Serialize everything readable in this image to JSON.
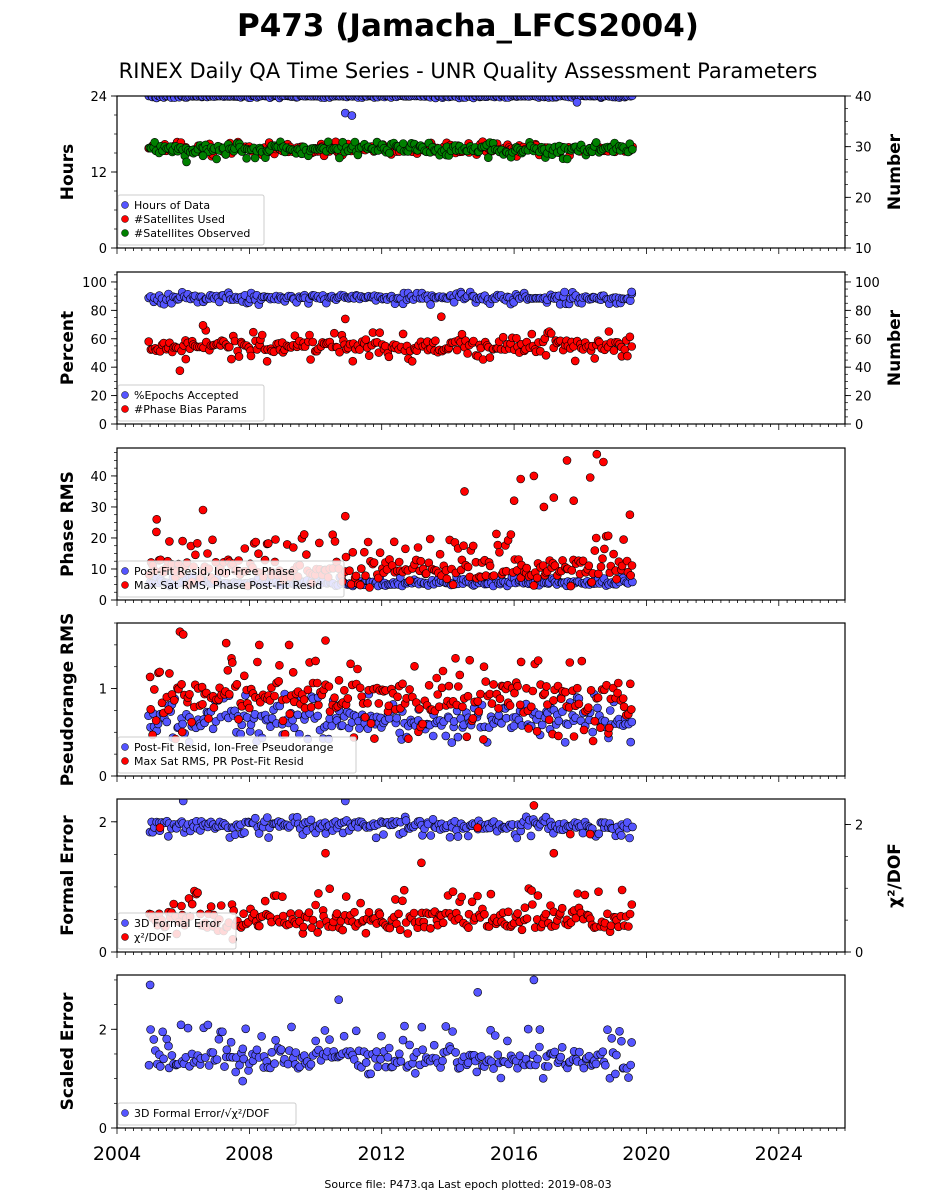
{
  "title": "P473 (Jamacha_LFCS2004)",
  "subtitle": "RINEX Daily QA Time Series - UNR Quality Assessment Parameters",
  "footer": "Source file: P473.qa Last epoch plotted: 2019-08-03",
  "colors": {
    "blue": "#5555ff",
    "red": "#ff0000",
    "green": "#008000",
    "edge": "#000000"
  },
  "x_axis": {
    "range": [
      2004.0,
      2026.0
    ],
    "tick_labels": [
      "2004",
      "2008",
      "2012",
      "2016",
      "2020",
      "2024"
    ],
    "data_start": 2004.95,
    "data_end": 2019.59
  },
  "chart_data": [
    {
      "type": "scatter",
      "ylabel": "Hours",
      "ylim": [
        0,
        24
      ],
      "yticks": [
        "0",
        "12",
        "24"
      ],
      "ylabel_right": "Number",
      "ylim_right": [
        10,
        40
      ],
      "yticks_right": [
        "10",
        "20",
        "30",
        "40"
      ],
      "legend": [
        "Hours of Data",
        "#Satellites Used",
        "#Satellites Observed"
      ],
      "legend_position": "lower-left",
      "series": [
        {
          "name": "Hours of Data",
          "color": "blue",
          "axis": "left",
          "typical": 24.0,
          "range": [
            23.7,
            24.0
          ],
          "outliers": [
            [
              2010.9,
              21.3
            ],
            [
              2011.1,
              20.9
            ],
            [
              2017.9,
              23.0
            ]
          ]
        },
        {
          "name": "#Satellites Used",
          "color": "red",
          "axis": "right",
          "typical": 29.5,
          "range": [
            28,
            31
          ],
          "outliers": [
            [
              2005.3,
              29.5
            ],
            [
              2008.6,
              30.8
            ],
            [
              2009.6,
              30.0
            ]
          ]
        },
        {
          "name": "#Satellites Observed",
          "color": "green",
          "axis": "right",
          "typical": 29.5,
          "range": [
            27.5,
            31
          ],
          "outliers": [
            [
              2006.1,
              27.0
            ],
            [
              2006.6,
              28.2
            ]
          ]
        }
      ]
    },
    {
      "type": "scatter",
      "ylabel": "Percent",
      "ylim": [
        0,
        107
      ],
      "yticks": [
        "0",
        "20",
        "40",
        "60",
        "80",
        "100"
      ],
      "ylabel_right": "Number",
      "ylim_right": [
        0,
        107
      ],
      "yticks_right": [
        "0",
        "20",
        "40",
        "60",
        "80",
        "100"
      ],
      "legend": [
        "%Epochs Accepted",
        "#Phase Bias Params"
      ],
      "legend_position": "lower-left",
      "series": [
        {
          "name": "%Epochs Accepted",
          "color": "blue",
          "axis": "left",
          "typical": 89,
          "range": [
            84,
            93
          ],
          "outliers": [
            [
              2019.55,
              93.0
            ]
          ]
        },
        {
          "name": "#Phase Bias Params",
          "color": "red",
          "axis": "right",
          "typical": 55,
          "range": [
            44,
            66
          ],
          "outliers": [
            [
              2005.9,
              37.5
            ],
            [
              2006.6,
              69.5
            ],
            [
              2010.9,
              74.0
            ],
            [
              2013.8,
              75.5
            ]
          ]
        }
      ]
    },
    {
      "type": "scatter",
      "ylabel": "Phase RMS",
      "ylim": [
        0,
        49
      ],
      "yticks": [
        "0",
        "10",
        "20",
        "30",
        "40"
      ],
      "legend": [
        "Post-Fit Resid, Ion-Free Phase",
        "Max Sat RMS, Phase Post-Fit Resid"
      ],
      "legend_position": "lower-left",
      "series": [
        {
          "name": "Post-Fit Resid, Ion-Free Phase",
          "color": "blue",
          "axis": "left",
          "typical": 5.5,
          "range": [
            4.5,
            7.5
          ],
          "outliers": []
        },
        {
          "name": "Max Sat RMS, Phase Post-Fit Resid",
          "color": "red",
          "axis": "left",
          "typical": 10,
          "range": [
            4,
            22
          ],
          "outliers": [
            [
              2005.2,
              26.0
            ],
            [
              2006.6,
              29.0
            ],
            [
              2010.9,
              27.0
            ],
            [
              2014.5,
              35.0
            ],
            [
              2016.2,
              39.0
            ],
            [
              2016.6,
              40.0
            ],
            [
              2017.2,
              33.0
            ],
            [
              2017.6,
              45.0
            ],
            [
              2018.3,
              39.5
            ],
            [
              2018.5,
              47.0
            ],
            [
              2018.7,
              44.5
            ],
            [
              2019.5,
              27.5
            ],
            [
              2016.0,
              32.0
            ],
            [
              2016.9,
              30.0
            ],
            [
              2017.8,
              32.0
            ]
          ]
        }
      ]
    },
    {
      "type": "scatter",
      "ylabel": "Pseudorange RMS",
      "ylim": [
        0,
        1.75
      ],
      "yticks": [
        "0",
        "1"
      ],
      "legend": [
        "Post-Fit Resid, Ion-Free Pseudorange",
        "Max Sat RMS, PR Post-Fit Resid"
      ],
      "legend_position": "lower-left",
      "series": [
        {
          "name": "Post-Fit Resid, Ion-Free Pseudorange",
          "color": "blue",
          "axis": "left",
          "typical": 0.65,
          "range": [
            0.38,
            0.95
          ],
          "outliers": []
        },
        {
          "name": "Max Sat RMS, PR Post-Fit Resid",
          "color": "red",
          "axis": "left",
          "typical": 0.9,
          "range": [
            0.4,
            1.35
          ],
          "outliers": [
            [
              2005.9,
              1.65
            ],
            [
              2006.0,
              1.62
            ],
            [
              2007.3,
              1.52
            ],
            [
              2008.3,
              1.5
            ],
            [
              2009.2,
              1.5
            ],
            [
              2010.3,
              1.55
            ]
          ]
        }
      ]
    },
    {
      "type": "scatter",
      "ylabel": "Formal Error",
      "ylim": [
        0,
        2.35
      ],
      "yticks": [
        "0",
        "2"
      ],
      "ylabel_right": "χ²/DOF",
      "ylim_right": [
        0,
        2.4
      ],
      "yticks_right": [
        "0",
        "2"
      ],
      "legend": [
        "3D Formal Error",
        "χ²/DOF"
      ],
      "legend_position": "lower-left",
      "series": [
        {
          "name": "3D Formal Error",
          "color": "blue",
          "axis": "left",
          "typical": 1.95,
          "range": [
            1.75,
            2.08
          ],
          "outliers": [
            [
              2006.0,
              2.32
            ],
            [
              2010.9,
              2.32
            ]
          ]
        },
        {
          "name": "χ²/DOF",
          "color": "red",
          "axis": "right",
          "typical": 0.5,
          "range": [
            0.27,
            1.0
          ],
          "outliers": [
            [
              2016.6,
              2.3
            ],
            [
              2014.9,
              1.95
            ],
            [
              2017.7,
              1.85
            ],
            [
              2018.3,
              1.85
            ],
            [
              2017.2,
              1.55
            ],
            [
              2010.3,
              1.55
            ],
            [
              2005.3,
              1.95
            ],
            [
              2007.5,
              0.2
            ],
            [
              2013.2,
              1.4
            ]
          ]
        }
      ]
    },
    {
      "type": "scatter",
      "ylabel": "Scaled Error",
      "ylim": [
        0,
        3.1
      ],
      "yticks": [
        "0",
        "2"
      ],
      "legend": [
        "3D Formal Error/√χ²/DOF"
      ],
      "legend_position": "lower-left",
      "series": [
        {
          "name": "3D Formal Error/√χ²/DOF",
          "color": "blue",
          "axis": "left",
          "typical": 1.4,
          "range": [
            1.0,
            2.1
          ],
          "outliers": [
            [
              2005.0,
              2.9
            ],
            [
              2016.6,
              3.0
            ],
            [
              2014.9,
              2.75
            ],
            [
              2007.8,
              0.95
            ],
            [
              2010.7,
              2.6
            ]
          ]
        }
      ]
    }
  ]
}
